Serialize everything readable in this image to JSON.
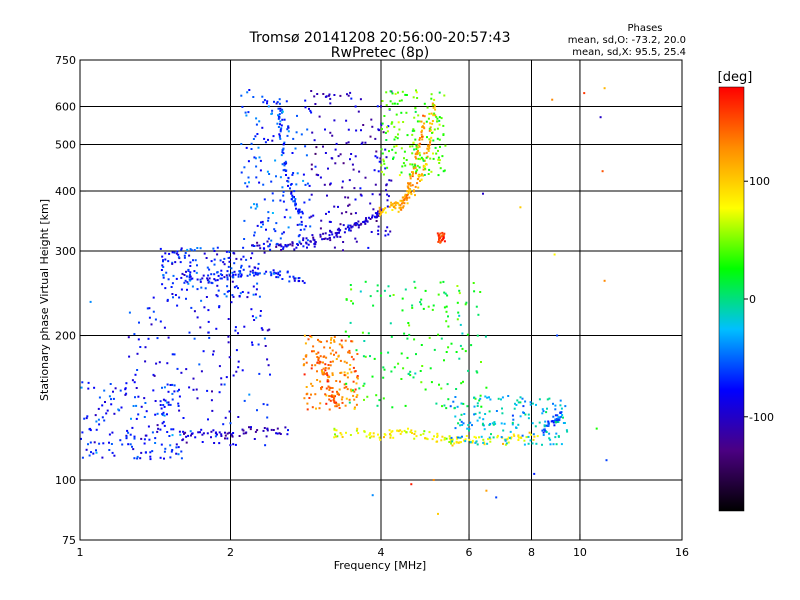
{
  "chart_data": {
    "type": "scatter",
    "title": "Tromsø 20141208 20:56:00-20:57:43",
    "subtitle": "RwPretec (8p)",
    "xlabel": "Frequency [MHz]",
    "ylabel": "Stationary phase Virtual Height [km]",
    "x_scale": "log",
    "y_scale": "log",
    "xlim": [
      1,
      16
    ],
    "ylim": [
      75,
      750
    ],
    "xticks": [
      1,
      2,
      4,
      6,
      8,
      10,
      16
    ],
    "xticklabels": [
      "1",
      "2",
      "4",
      "6",
      "8",
      "10",
      "16"
    ],
    "xgrid": [
      2,
      4,
      6,
      8,
      10
    ],
    "yticks": [
      75,
      100,
      200,
      300,
      400,
      500,
      600,
      750
    ],
    "yticklabels": [
      "75",
      "100",
      "200",
      "300",
      "400",
      "500",
      "600",
      "750"
    ],
    "ygrid": [
      100,
      200,
      300,
      400,
      500,
      600
    ],
    "grid": true,
    "legend_lines": [
      "Phases",
      "mean, sd,O: -73.2, 20.0",
      "mean, sd,X:  95.5, 25.4"
    ],
    "legend_position": "top-right",
    "colorbar": {
      "label": "[deg]",
      "range": [
        -180,
        180
      ],
      "ticks": [
        100,
        0,
        -100
      ],
      "ticklabels": [
        "100",
        "0",
        "-100"
      ],
      "colors": [
        "#000000",
        "#4b0082",
        "#0000ff",
        "#00bfff",
        "#00ff00",
        "#ffff00",
        "#ff8c00",
        "#ff0000"
      ]
    },
    "traces": [
      {
        "freq": [
          2.2,
          2.4,
          2.6,
          2.8,
          3.0,
          3.2,
          3.4,
          3.6,
          3.8,
          4.0
        ],
        "height": [
          310,
          305,
          308,
          312,
          318,
          325,
          332,
          340,
          350,
          360
        ],
        "phase": -95
      },
      {
        "freq": [
          2.5,
          2.5,
          2.55,
          2.6,
          2.7,
          2.8
        ],
        "height": [
          630,
          560,
          480,
          420,
          380,
          345
        ],
        "phase": -65
      },
      {
        "freq": [
          3.9,
          4.1,
          4.3,
          4.5,
          4.7,
          4.85,
          4.95,
          5.05,
          5.1
        ],
        "height": [
          358,
          365,
          375,
          390,
          410,
          440,
          480,
          540,
          620
        ],
        "phase": 110
      },
      {
        "freq": [
          4.3,
          4.5,
          4.6,
          4.7,
          4.8,
          4.9
        ],
        "height": [
          360,
          390,
          420,
          460,
          520,
          580
        ],
        "phase": 125
      },
      {
        "freq": [
          5.2,
          5.3,
          5.35
        ],
        "height": [
          320,
          318,
          322
        ],
        "phase": 160
      },
      {
        "freq": [
          1.5,
          1.8,
          2.0,
          2.3,
          2.6
        ],
        "height": [
          123,
          125,
          124,
          127,
          126
        ],
        "phase": -105
      },
      {
        "freq": [
          3.2,
          3.6,
          4.0,
          4.4,
          4.8,
          5.2,
          5.6,
          6.0,
          6.6,
          7.4,
          8.2
        ],
        "height": [
          124,
          125,
          123,
          126,
          124,
          122,
          121,
          122,
          121,
          122,
          124
        ],
        "phase": 80
      },
      {
        "freq": [
          3.0,
          3.1,
          3.2,
          3.3
        ],
        "height": [
          180,
          165,
          150,
          140
        ],
        "phase": 150
      },
      {
        "freq": [
          1.6,
          1.8,
          2.0,
          2.2,
          2.4,
          2.6,
          2.8
        ],
        "height": [
          265,
          262,
          268,
          272,
          270,
          266,
          262
        ],
        "phase": -70
      },
      {
        "freq": [
          8.4,
          8.7,
          9.0,
          9.2
        ],
        "height": [
          126,
          130,
          133,
          138
        ],
        "phase": -60
      }
    ],
    "clusters": [
      {
        "fmin": 1.25,
        "fmax": 2.4,
        "hmin": 118,
        "hmax": 240,
        "phase": -80
      },
      {
        "fmin": 1.45,
        "fmax": 2.3,
        "hmin": 240,
        "hmax": 305,
        "phase": -70
      },
      {
        "fmin": 2.1,
        "fmax": 2.9,
        "hmin": 305,
        "hmax": 650,
        "phase": -60
      },
      {
        "fmin": 2.9,
        "fmax": 4.2,
        "hmin": 300,
        "hmax": 650,
        "phase": -100
      },
      {
        "fmin": 4.0,
        "fmax": 5.4,
        "hmin": 430,
        "hmax": 650,
        "phase": 40
      },
      {
        "fmin": 2.8,
        "fmax": 3.6,
        "hmin": 140,
        "hmax": 200,
        "phase": 135
      },
      {
        "fmin": 3.4,
        "fmax": 6.5,
        "hmin": 140,
        "hmax": 260,
        "phase": 20
      },
      {
        "fmin": 1.0,
        "fmax": 1.6,
        "hmin": 110,
        "hmax": 160,
        "phase": -70
      },
      {
        "fmin": 5.5,
        "fmax": 9.5,
        "hmin": 118,
        "hmax": 150,
        "phase": -20
      }
    ],
    "isolated_points": [
      {
        "f": 6.4,
        "h": 395,
        "phase": -100
      },
      {
        "f": 6.5,
        "h": 95,
        "phase": 120
      },
      {
        "f": 6.8,
        "h": 92,
        "phase": -60
      },
      {
        "f": 7.6,
        "h": 370,
        "phase": 100
      },
      {
        "f": 8.1,
        "h": 103,
        "phase": -70
      },
      {
        "f": 8.8,
        "h": 620,
        "phase": 130
      },
      {
        "f": 8.9,
        "h": 295,
        "phase": 80
      },
      {
        "f": 9.0,
        "h": 200,
        "phase": -60
      },
      {
        "f": 10.2,
        "h": 640,
        "phase": 160
      },
      {
        "f": 11.0,
        "h": 570,
        "phase": -100
      },
      {
        "f": 11.1,
        "h": 440,
        "phase": 150
      },
      {
        "f": 11.2,
        "h": 260,
        "phase": 130
      },
      {
        "f": 11.3,
        "h": 110,
        "phase": -60
      },
      {
        "f": 11.2,
        "h": 655,
        "phase": 110
      },
      {
        "f": 10.8,
        "h": 128,
        "phase": 30
      },
      {
        "f": 1.05,
        "h": 235,
        "phase": -40
      },
      {
        "f": 4.6,
        "h": 98,
        "phase": 170
      },
      {
        "f": 5.1,
        "h": 100,
        "phase": 130
      },
      {
        "f": 3.85,
        "h": 93,
        "phase": -40
      },
      {
        "f": 5.2,
        "h": 85,
        "phase": 100
      }
    ]
  }
}
